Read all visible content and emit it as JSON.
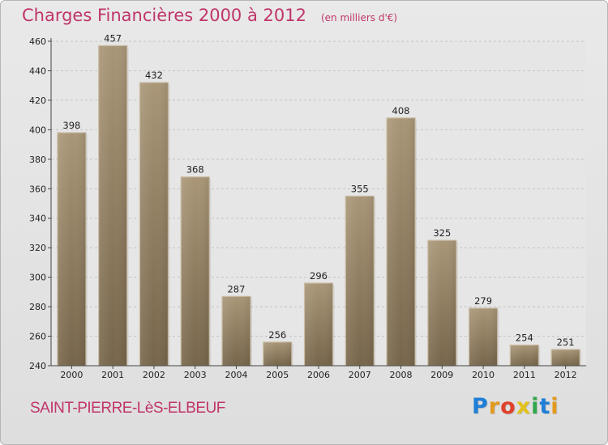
{
  "header": {
    "title": "Charges Financières 2000 à 2012",
    "unit": "(en milliers d'€)"
  },
  "footer": {
    "town": "SAINT-PIERRE-LèS-ELBEUF",
    "logo_letters": [
      "P",
      "r",
      "o",
      "x",
      "i",
      "t",
      "i"
    ],
    "logo_colors": [
      "#1f7ed6",
      "#e39a1d",
      "#e0402a",
      "#e3c21a",
      "#2fa84a",
      "#1f7ed6",
      "#e39a1d"
    ]
  },
  "chart_data": {
    "type": "bar",
    "categories": [
      "2000",
      "2001",
      "2002",
      "2003",
      "2004",
      "2005",
      "2006",
      "2007",
      "2008",
      "2009",
      "2010",
      "2011",
      "2012"
    ],
    "values": [
      398,
      457,
      432,
      368,
      287,
      256,
      296,
      355,
      408,
      325,
      279,
      254,
      251
    ],
    "ylim": [
      240,
      460
    ],
    "yticks": [
      240,
      260,
      280,
      300,
      320,
      340,
      360,
      380,
      400,
      420,
      440,
      460
    ],
    "grid": true,
    "bar_color": "#8f7a5b"
  }
}
